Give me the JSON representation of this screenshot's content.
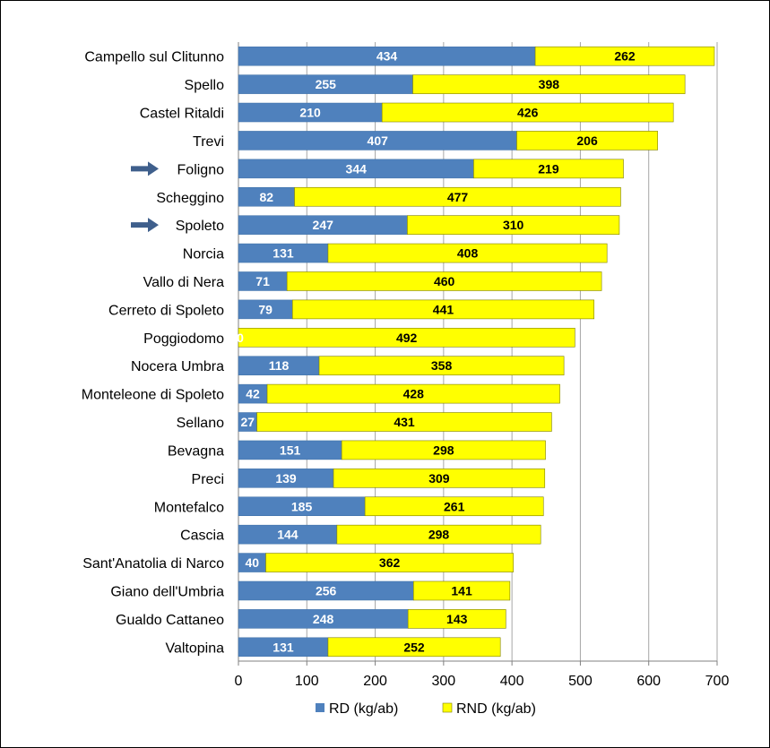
{
  "chart_data": {
    "type": "bar",
    "orientation": "horizontal",
    "stacked": true,
    "categories": [
      "Campello sul Clitunno",
      "Spello",
      "Castel Ritaldi",
      "Trevi",
      "Foligno",
      "Scheggino",
      "Spoleto",
      "Norcia",
      "Vallo di Nera",
      "Cerreto di Spoleto",
      "Poggiodomo",
      "Nocera Umbra",
      "Monteleone di Spoleto",
      "Sellano",
      "Bevagna",
      "Preci",
      "Montefalco",
      "Cascia",
      "Sant'Anatolia di Narco",
      "Giano dell'Umbria",
      "Gualdo Cattaneo",
      "Valtopina"
    ],
    "highlighted": [
      "Foligno",
      "Spoleto"
    ],
    "series": [
      {
        "name": "RD (kg/ab)",
        "color": "#4F81BD",
        "values": [
          434,
          255,
          210,
          407,
          344,
          82,
          247,
          131,
          71,
          79,
          0,
          118,
          42,
          27,
          151,
          139,
          185,
          144,
          40,
          256,
          248,
          131
        ],
        "labels": [
          "434",
          "255",
          "210",
          "407",
          "344",
          "82",
          "247",
          "131",
          "71",
          "79",
          "0",
          "118",
          "42",
          "27",
          "151",
          "139",
          "185",
          "144",
          "40",
          "256",
          "248",
          "131"
        ]
      },
      {
        "name": "RND (kg/ab)",
        "color": "#FFFF00",
        "values": [
          262,
          398,
          426,
          206,
          219,
          477,
          310,
          408,
          460,
          441,
          492,
          358,
          428,
          431,
          298,
          309,
          261,
          298,
          362,
          141,
          143,
          252
        ],
        "labels": [
          "262",
          "398",
          "426",
          "206",
          "219",
          "477",
          "310",
          "408",
          "460",
          "441",
          "492",
          "358",
          "428",
          "431",
          "298",
          "309",
          "261",
          "298",
          "362",
          "141",
          "143",
          "252"
        ]
      }
    ],
    "xlim": [
      0,
      700
    ],
    "xticks": [
      0,
      100,
      200,
      300,
      400,
      500,
      600,
      700
    ],
    "xtick_labels": [
      "0",
      "100",
      "200",
      "300",
      "400",
      "500",
      "600",
      "700"
    ],
    "title": "",
    "xlabel": "",
    "ylabel": "",
    "grid": "vertical",
    "legend": "bottom"
  }
}
